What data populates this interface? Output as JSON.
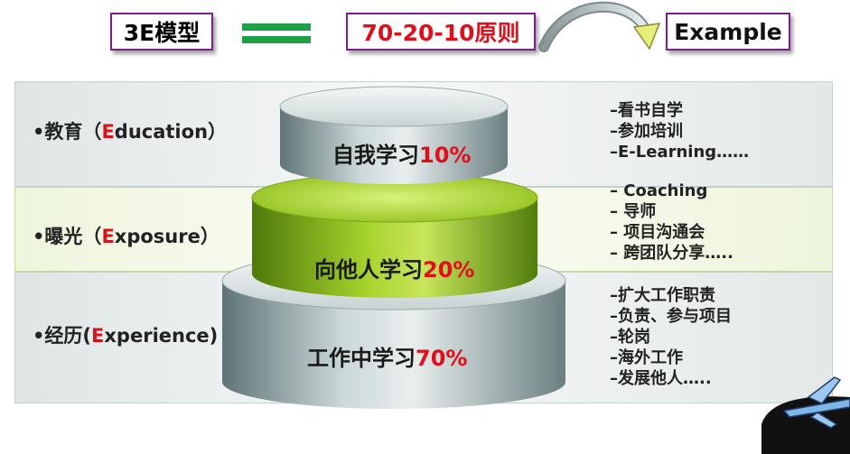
{
  "header": {
    "model_label": "3E模型",
    "rule_label": "70-20-10原则",
    "example_label": "Example"
  },
  "rows": [
    {
      "category_prefix": "•教育（",
      "category_letter": "E",
      "category_rest": "ducation）",
      "tier_text": "自我学习",
      "tier_percent": "10%",
      "items": [
        "–看书自学",
        "–参加培训",
        "–E-Learning……"
      ]
    },
    {
      "category_prefix": "•曝光（",
      "category_letter": "E",
      "category_rest": "xposure）",
      "tier_text": "向他人学习",
      "tier_percent": "20%",
      "items": [
        "– Coaching",
        "– 导师",
        "– 项目沟通会",
        "– 跨团队分享….."
      ]
    },
    {
      "category_prefix": "•经历(",
      "category_letter": "E",
      "category_rest": "xperience)",
      "tier_text": "工作中学习",
      "tier_percent": "70%",
      "items": [
        "–扩大工作职责",
        "–负责、参与项目",
        "–轮岗",
        "–海外工作",
        "–发展他人….."
      ]
    }
  ],
  "colors": {
    "accent_red": "#e0101a",
    "frame_purple": "#7a1f8c",
    "equals_green": "#1fa046",
    "tier_green": "#8fbf1a",
    "tier_grey": "#9fb2b4"
  },
  "icons": [
    "curved-arrow-icon",
    "airplane-icon"
  ]
}
